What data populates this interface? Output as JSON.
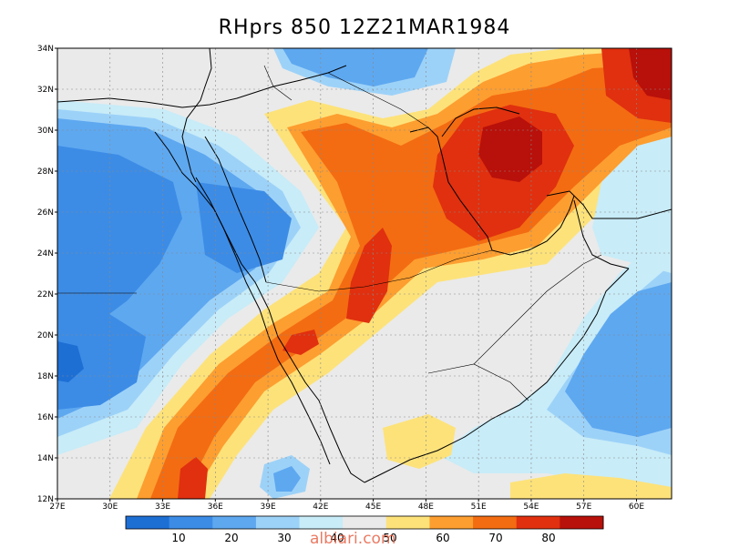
{
  "map": {
    "title": "RHprs 850  12Z21MAR1984",
    "variable": "RHprs",
    "level": "850",
    "time": "12Z21MAR1984",
    "lat_labels": [
      "34N",
      "32N",
      "30N",
      "28N",
      "26N",
      "24N",
      "22N",
      "20N",
      "18N",
      "16N",
      "14N",
      "12N"
    ],
    "lon_labels": [
      "27E",
      "30E",
      "33E",
      "36E",
      "39E",
      "42E",
      "45E",
      "48E",
      "51E",
      "54E",
      "57E",
      "60E"
    ],
    "lat_range": [
      12,
      34
    ],
    "lon_range": [
      27,
      62
    ],
    "colorbar": {
      "ticks": [
        "10",
        "20",
        "30",
        "40",
        "50",
        "60",
        "70",
        "80"
      ],
      "colors": [
        "#1e6fd4",
        "#3c8ce6",
        "#5ea8f0",
        "#9dd2f8",
        "#c8ecf8",
        "#eaeaea",
        "#fde27a",
        "#fd9e30",
        "#f36c12",
        "#e0300f",
        "#b8100a"
      ]
    },
    "watermark": "albiari.com"
  }
}
